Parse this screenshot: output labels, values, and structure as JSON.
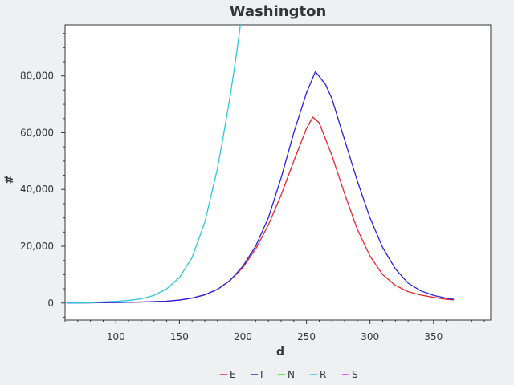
{
  "chart_data": {
    "type": "line",
    "title": "Washington",
    "xlabel": "d",
    "ylabel": "#",
    "xlim": [
      60,
      395
    ],
    "ylim": [
      -6000,
      98000
    ],
    "x_ticks": [
      100,
      150,
      200,
      250,
      300,
      350
    ],
    "x_tick_labels": [
      "100",
      "150",
      "200",
      "250",
      "300",
      "350"
    ],
    "y_ticks": [
      0,
      20000,
      40000,
      60000,
      80000
    ],
    "y_tick_labels": [
      "0",
      "20,000",
      "40,000",
      "60,000",
      "80,000"
    ],
    "grid": false,
    "legend_position": "bottom",
    "series": [
      {
        "name": "E",
        "color": "#e8242c",
        "x": [
          61,
          80,
          100,
          120,
          140,
          150,
          160,
          170,
          180,
          190,
          200,
          210,
          220,
          230,
          240,
          250,
          255,
          260,
          270,
          280,
          290,
          300,
          310,
          320,
          330,
          340,
          350,
          360,
          366
        ],
        "y": [
          0,
          100,
          200,
          350,
          650,
          1050,
          1750,
          2900,
          4800,
          8000,
          12500,
          19000,
          27500,
          38000,
          50000,
          61500,
          65500,
          63500,
          52000,
          38500,
          26000,
          16500,
          10000,
          6200,
          4000,
          2800,
          2000,
          1300,
          1100
        ]
      },
      {
        "name": "I",
        "color": "#2424e0",
        "x": [
          61,
          80,
          100,
          120,
          140,
          150,
          160,
          170,
          180,
          190,
          200,
          210,
          220,
          230,
          240,
          250,
          257,
          265,
          270,
          280,
          290,
          300,
          310,
          320,
          330,
          340,
          350,
          360,
          366
        ],
        "y": [
          0,
          100,
          200,
          350,
          650,
          1050,
          1750,
          2900,
          4800,
          8000,
          13000,
          20000,
          30000,
          44000,
          60000,
          74000,
          81500,
          77000,
          72000,
          57500,
          43000,
          30000,
          19500,
          12000,
          7000,
          4300,
          2700,
          1700,
          1300
        ]
      },
      {
        "name": "N",
        "color": "#3ed63e",
        "x": [],
        "y": []
      },
      {
        "name": "R",
        "color": "#2cc6e0",
        "x": [
          61,
          80,
          90,
          100,
          110,
          120,
          130,
          140,
          150,
          160,
          170,
          180,
          185,
          190,
          195,
          198
        ],
        "y": [
          0,
          100,
          400,
          600,
          900,
          1500,
          2700,
          5000,
          9000,
          16000,
          28500,
          47500,
          60000,
          73000,
          88000,
          98000
        ]
      },
      {
        "name": "S",
        "color": "#e040e0",
        "x": [],
        "y": []
      }
    ]
  }
}
